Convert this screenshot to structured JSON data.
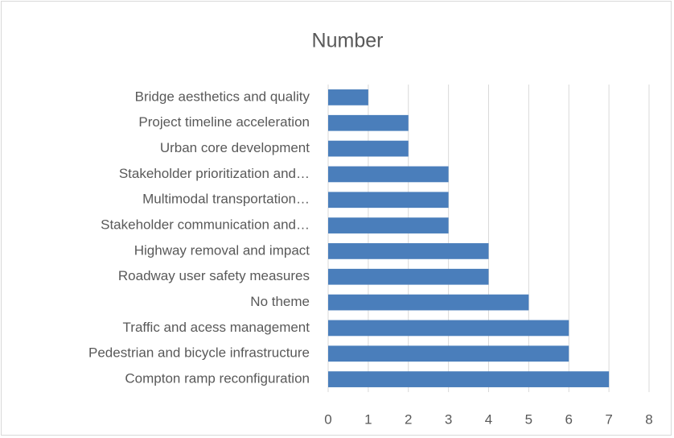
{
  "chart_data": {
    "type": "bar",
    "orientation": "horizontal",
    "title": "Number",
    "categories": [
      "Bridge aesthetics and quality",
      "Project timeline acceleration",
      "Urban core development",
      "Stakeholder prioritization and…",
      "Multimodal transportation…",
      "Stakeholder communication and…",
      "Highway removal and impact",
      "Roadway user safety measures",
      "No theme",
      "Traffic and acess management",
      "Pedestrian and bicycle infrastructure",
      "Compton ramp reconfiguration"
    ],
    "values": [
      1,
      2,
      2,
      3,
      3,
      3,
      4,
      4,
      5,
      6,
      6,
      7
    ],
    "color": "#4a7ebb",
    "xlim": [
      0,
      8
    ],
    "xticks": [
      0,
      1,
      2,
      3,
      4,
      5,
      6,
      7,
      8
    ],
    "grid": true
  }
}
